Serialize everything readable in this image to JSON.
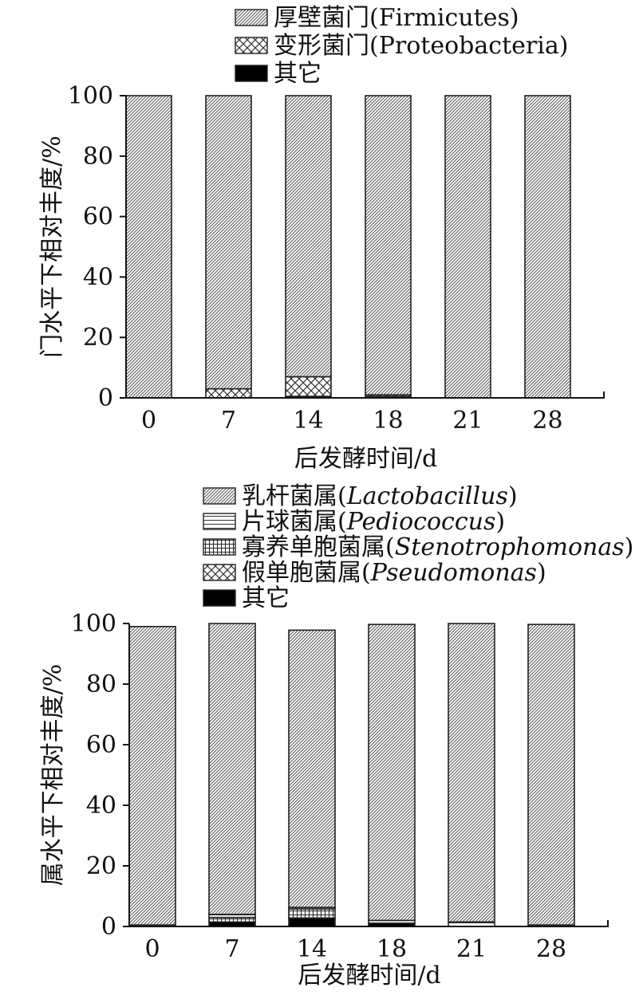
{
  "chart_data": [
    {
      "type": "bar",
      "stacked": true,
      "xlabel": "后发酵时间/d",
      "ylabel": "门水平下相对丰度/%",
      "ylim": [
        0,
        100
      ],
      "yticks": [
        "0",
        "20",
        "40",
        "60",
        "80",
        "100"
      ],
      "categories": [
        "0",
        "7",
        "14",
        "18",
        "21",
        "28"
      ],
      "legend_position": "top-left",
      "series": [
        {
          "name": "厚壁菌门(",
          "name_latin": "Firmicutes",
          "name_close": ")",
          "italic": false,
          "pattern": "diag",
          "values": [
            100,
            97,
            93,
            99,
            100,
            100
          ]
        },
        {
          "name": "变形菌门(",
          "name_latin": "Proteobacteria",
          "name_close": ")",
          "italic": false,
          "pattern": "cross",
          "values": [
            0,
            3,
            6.5,
            0.5,
            0,
            0
          ]
        },
        {
          "name": "其它",
          "name_latin": "",
          "name_close": "",
          "italic": false,
          "pattern": "solid",
          "values": [
            0,
            0,
            0.5,
            0.5,
            0,
            0
          ]
        }
      ]
    },
    {
      "type": "bar",
      "stacked": true,
      "xlabel": "后发酵时间/d",
      "ylabel": "属水平下相对丰度/%",
      "ylim": [
        0,
        100
      ],
      "yticks": [
        "0",
        "20",
        "40",
        "60",
        "80",
        "100"
      ],
      "categories": [
        "0",
        "7",
        "14",
        "18",
        "21",
        "28"
      ],
      "legend_position": "top-left",
      "series": [
        {
          "name": "乳杆菌属(",
          "name_latin": "Lactobacillus",
          "name_close": ")",
          "italic": true,
          "pattern": "diag",
          "values": [
            98.5,
            96,
            91.5,
            97.7,
            98.5,
            99.2
          ]
        },
        {
          "name": "片球菌属(",
          "name_latin": "Pediococcus",
          "name_close": ")",
          "italic": true,
          "pattern": "hlines",
          "values": [
            0.5,
            1,
            0.5,
            1,
            1.5,
            0.5
          ]
        },
        {
          "name": "寡养单胞菌属(",
          "name_latin": "Stenotrophomonas",
          "name_close": ")",
          "italic": true,
          "pattern": "grid",
          "values": [
            0,
            1.5,
            3,
            0,
            0,
            0
          ]
        },
        {
          "name": "假单胞菌属(",
          "name_latin": "Pseudomonas",
          "name_close": ")",
          "italic": true,
          "pattern": "cross",
          "values": [
            0,
            0,
            0,
            0,
            0,
            0
          ]
        },
        {
          "name": "其它",
          "name_latin": "",
          "name_close": "",
          "italic": false,
          "pattern": "solid",
          "values": [
            0,
            1.5,
            2.8,
            1,
            0,
            0
          ]
        }
      ]
    }
  ]
}
